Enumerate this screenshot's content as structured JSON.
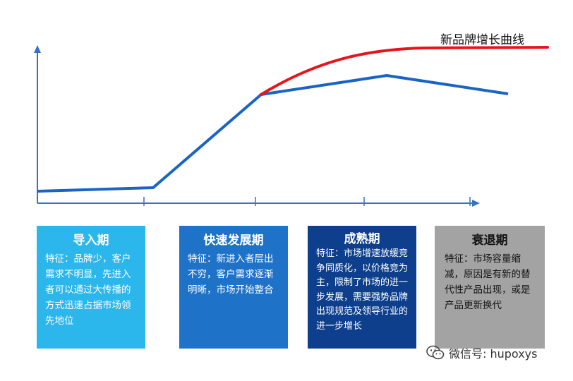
{
  "curve_label": "新品牌增长曲线",
  "colors": {
    "main_curve": "#1a64c4",
    "new_brand_curve": "#e8141c",
    "axis": "#3a6fc4"
  },
  "stages": [
    {
      "title": "导入期",
      "desc": "特征：品牌少，客户需求不明显，先进入者可以通过大传播的方式迅速占据市场领先地位",
      "color": "#2bb6ec"
    },
    {
      "title": "快速发展期",
      "desc": "特征：新进入者层出不穷，客户需求逐渐明晰，市场开始整合",
      "color": "#1e72c8"
    },
    {
      "title": "成熟期",
      "desc": "特征：市场增速放缓竞争同质化，以价格竞为主，限制了市场的进一步发展，需要强势品牌出现规范及领导行业的进一步增长",
      "color": "#0e3f8c"
    },
    {
      "title": "衰退期",
      "desc": "特征：市场容量缩减，原因是有新的替代性产品出现，或是产品更新换代",
      "color": "#a3a3a3"
    }
  ],
  "watermark": {
    "text": "微信号: hupoxys",
    "icon": "wechat-icon"
  }
}
